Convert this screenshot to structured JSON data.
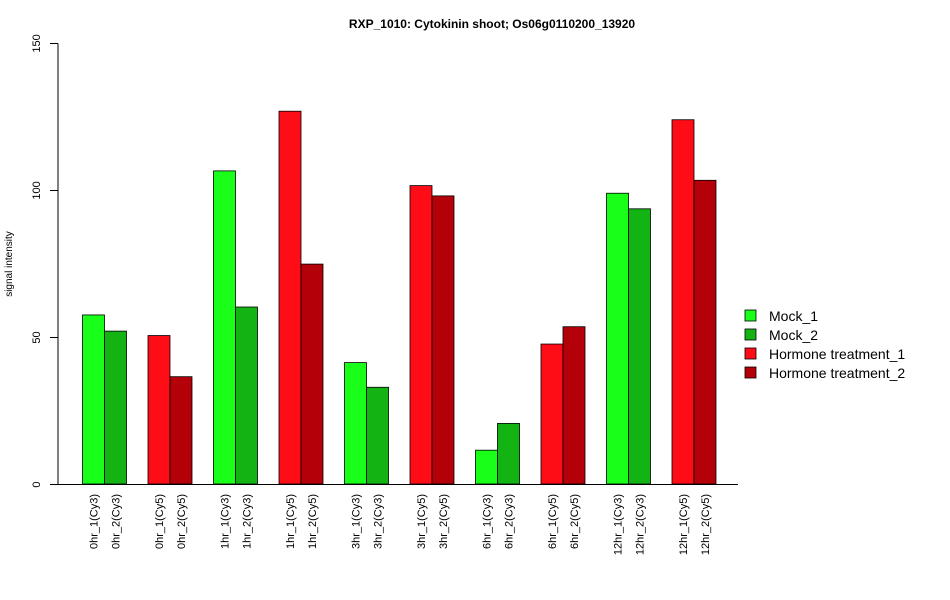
{
  "chart_data": {
    "type": "bar",
    "title": "RXP_1010: Cytokinin shoot; Os06g0110200_13920",
    "xlabel": "",
    "ylabel": "signal intensity",
    "ylim": [
      0,
      150
    ],
    "yticks": [
      0,
      50,
      100,
      150
    ],
    "grid": false,
    "legend_position": "right",
    "legend": [
      {
        "name": "Mock_1",
        "color": "#1aff1a"
      },
      {
        "name": "Mock_2",
        "color": "#12b312"
      },
      {
        "name": "Hormone treatment_1",
        "color": "#ff0d17"
      },
      {
        "name": "Hormone treatment_2",
        "color": "#b30009"
      }
    ],
    "groups": [
      {
        "bars": [
          {
            "label": "0hr_1(Cy3)",
            "value": 57.5,
            "series": "Mock_1"
          },
          {
            "label": "0hr_2(Cy3)",
            "value": 52,
            "series": "Mock_2"
          }
        ]
      },
      {
        "bars": [
          {
            "label": "0hr_1(Cy5)",
            "value": 50.5,
            "series": "Hormone treatment_1"
          },
          {
            "label": "0hr_2(Cy5)",
            "value": 36.5,
            "series": "Hormone treatment_2"
          }
        ]
      },
      {
        "bars": [
          {
            "label": "1hr_1(Cy3)",
            "value": 106.5,
            "series": "Mock_1"
          },
          {
            "label": "1hr_2(Cy3)",
            "value": 60.2,
            "series": "Mock_2"
          }
        ]
      },
      {
        "bars": [
          {
            "label": "1hr_1(Cy5)",
            "value": 126.8,
            "series": "Hormone treatment_1"
          },
          {
            "label": "1hr_2(Cy5)",
            "value": 74.8,
            "series": "Hormone treatment_2"
          }
        ]
      },
      {
        "bars": [
          {
            "label": "3hr_1(Cy3)",
            "value": 41.3,
            "series": "Mock_1"
          },
          {
            "label": "3hr_2(Cy3)",
            "value": 32.9,
            "series": "Mock_2"
          }
        ]
      },
      {
        "bars": [
          {
            "label": "3hr_1(Cy5)",
            "value": 101.5,
            "series": "Hormone treatment_1"
          },
          {
            "label": "3hr_2(Cy5)",
            "value": 98,
            "series": "Hormone treatment_2"
          }
        ]
      },
      {
        "bars": [
          {
            "label": "6hr_1(Cy3)",
            "value": 11.5,
            "series": "Mock_1"
          },
          {
            "label": "6hr_2(Cy3)",
            "value": 20.6,
            "series": "Mock_2"
          }
        ]
      },
      {
        "bars": [
          {
            "label": "6hr_1(Cy5)",
            "value": 47.6,
            "series": "Hormone treatment_1"
          },
          {
            "label": "6hr_2(Cy5)",
            "value": 53.5,
            "series": "Hormone treatment_2"
          }
        ]
      },
      {
        "bars": [
          {
            "label": "12hr_1(Cy3)",
            "value": 98.9,
            "series": "Mock_1"
          },
          {
            "label": "12hr_2(Cy3)",
            "value": 93.6,
            "series": "Mock_2"
          }
        ]
      },
      {
        "bars": [
          {
            "label": "12hr_1(Cy5)",
            "value": 123.9,
            "series": "Hormone treatment_1"
          },
          {
            "label": "12hr_2(Cy5)",
            "value": 103.3,
            "series": "Hormone treatment_2"
          }
        ]
      }
    ]
  }
}
